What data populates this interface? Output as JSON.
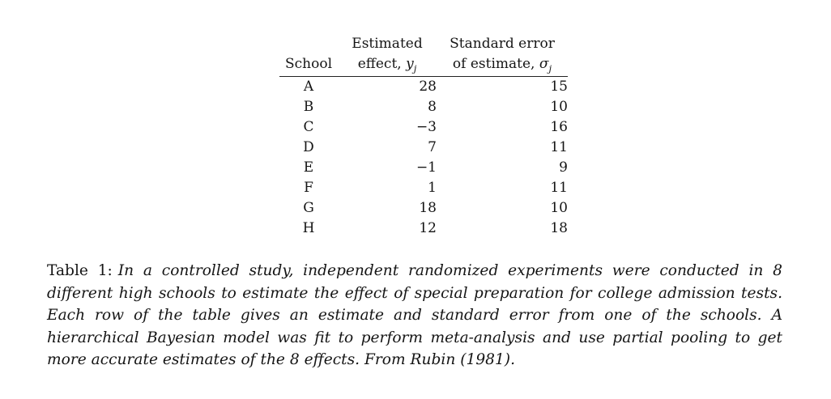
{
  "table": {
    "header": {
      "school": "School",
      "effect_line1": "Estimated",
      "effect_line2": "effect, ",
      "effect_var": "y",
      "stderr_line1": "Standard error",
      "stderr_line2": "of estimate, ",
      "stderr_var": "σ",
      "sub": "j"
    },
    "rows": [
      {
        "school": "A",
        "effect": "28",
        "stderr": "15"
      },
      {
        "school": "B",
        "effect": "8",
        "stderr": "10"
      },
      {
        "school": "C",
        "effect": "−3",
        "stderr": "16"
      },
      {
        "school": "D",
        "effect": "7",
        "stderr": "11"
      },
      {
        "school": "E",
        "effect": "−1",
        "stderr": "9"
      },
      {
        "school": "F",
        "effect": "1",
        "stderr": "11"
      },
      {
        "school": "G",
        "effect": "18",
        "stderr": "10"
      },
      {
        "school": "H",
        "effect": "12",
        "stderr": "18"
      }
    ]
  },
  "caption": {
    "label": "Table 1:",
    "text": "In a controlled study, independent randomized experiments were conducted in 8 different high schools to estimate the effect of special preparation for college admission tests. Each row of the table gives an estimate and standard error from one of the schools. A hierarchical Bayesian model was fit to perform meta-analysis and use partial pooling to get more accurate estimates of the 8 effects. From Rubin (1981)."
  }
}
